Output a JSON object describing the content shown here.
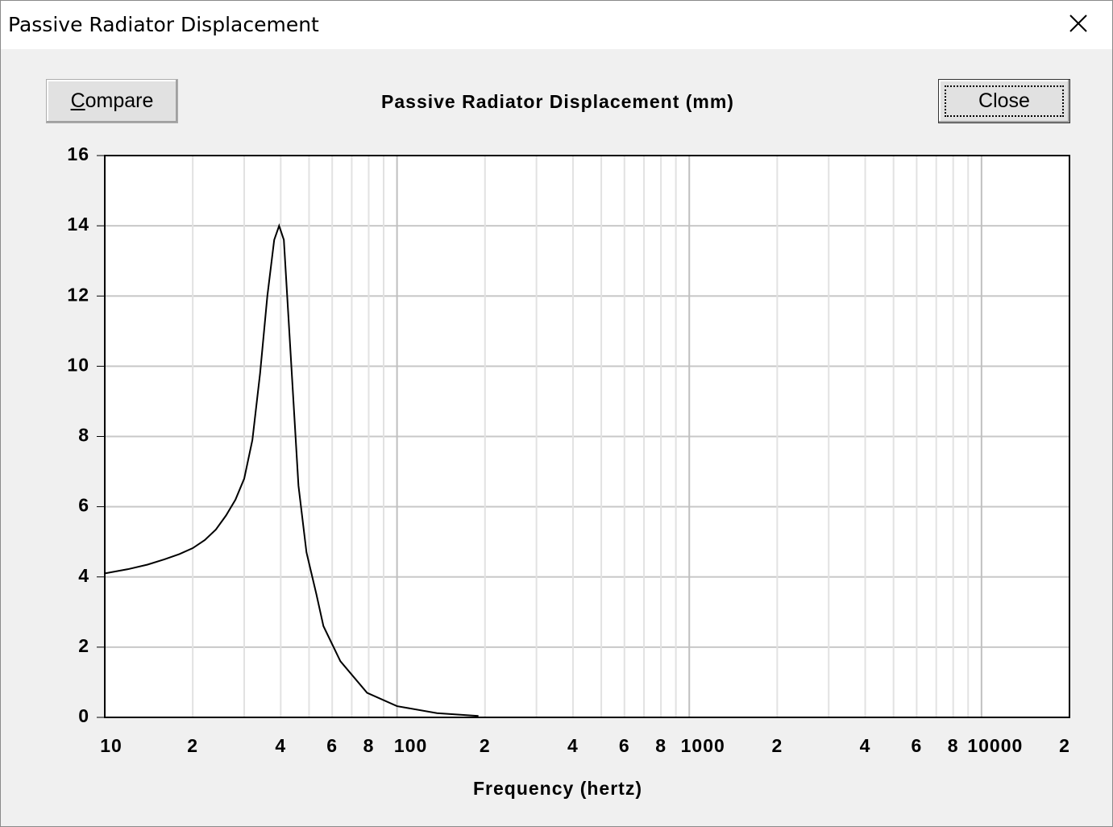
{
  "window": {
    "title": "Passive Radiator Displacement"
  },
  "buttons": [
    "Compare",
    "Close"
  ],
  "chart_data": {
    "type": "line",
    "title": "Passive Radiator Displacement (mm)",
    "x_label": "Frequency (hertz)",
    "x_scale": "log",
    "grid": true,
    "color": "#000000",
    "x": [
      10,
      12,
      14,
      16,
      18,
      20,
      22,
      24,
      26,
      28,
      30,
      32,
      34,
      36,
      38,
      39.5,
      41,
      43.5,
      46,
      49,
      53,
      56,
      64,
      79,
      100,
      137,
      190
    ],
    "values": [
      4.1,
      4.22,
      4.35,
      4.5,
      4.65,
      4.82,
      5.05,
      5.35,
      5.75,
      6.2,
      6.8,
      7.9,
      9.8,
      12.0,
      13.6,
      14.0,
      13.6,
      10.0,
      6.6,
      4.7,
      3.5,
      2.6,
      1.6,
      0.7,
      0.32,
      0.12,
      0.04
    ],
    "xlim": [
      10,
      20000
    ],
    "ylim": [
      0,
      16
    ],
    "yticks": [
      0,
      2,
      4,
      6,
      8,
      10,
      12,
      14,
      16
    ],
    "xticks": [
      10,
      {
        "value": 20,
        "label": "2"
      },
      {
        "value": 40,
        "label": "4"
      },
      {
        "value": 60,
        "label": "6"
      },
      {
        "value": 80,
        "label": "8"
      },
      100,
      {
        "value": 200,
        "label": "2"
      },
      {
        "value": 400,
        "label": "4"
      },
      {
        "value": 600,
        "label": "6"
      },
      {
        "value": 800,
        "label": "8"
      },
      1000,
      {
        "value": 2000,
        "label": "2"
      },
      {
        "value": 4000,
        "label": "4"
      },
      {
        "value": 6000,
        "label": "6"
      },
      {
        "value": 8000,
        "label": "8"
      },
      10000,
      {
        "value": 20000,
        "label": "2"
      }
    ],
    "minor_xticks": [
      30,
      50,
      70,
      90,
      300,
      500,
      700,
      900,
      3000,
      5000,
      7000,
      9000
    ]
  }
}
